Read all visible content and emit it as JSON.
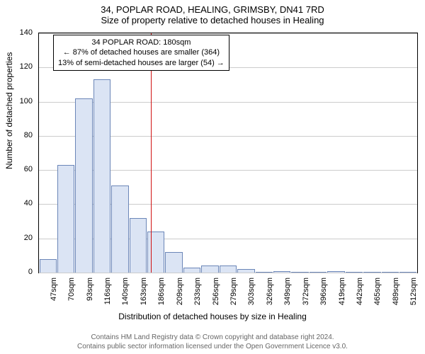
{
  "title": "34, POPLAR ROAD, HEALING, GRIMSBY, DN41 7RD",
  "subtitle": "Size of property relative to detached houses in Healing",
  "y_axis_label": "Number of detached properties",
  "x_axis_label": "Distribution of detached houses by size in Healing",
  "chart": {
    "type": "histogram",
    "ylim": [
      0,
      140
    ],
    "ytick_step": 20,
    "yticks": [
      0,
      20,
      40,
      60,
      80,
      100,
      120,
      140
    ],
    "bar_fill": "#dbe4f4",
    "bar_stroke": "#6b86b8",
    "background": "#ffffff",
    "grid_color": "#cccccc",
    "axis_color": "#000000",
    "ref_line_color": "#d11313",
    "x_labels": [
      "47sqm",
      "70sqm",
      "93sqm",
      "116sqm",
      "140sqm",
      "163sqm",
      "186sqm",
      "209sqm",
      "233sqm",
      "256sqm",
      "279sqm",
      "303sqm",
      "326sqm",
      "349sqm",
      "372sqm",
      "396sqm",
      "419sqm",
      "442sqm",
      "465sqm",
      "489sqm",
      "512sqm"
    ],
    "values": [
      8,
      63,
      102,
      113,
      51,
      32,
      24,
      12,
      3,
      4,
      4,
      2,
      0,
      1,
      0,
      0,
      1,
      0,
      0,
      0,
      0
    ],
    "ref_at_index": 5.7
  },
  "annotation": {
    "line1": "34 POPLAR ROAD: 180sqm",
    "line2": "← 87% of detached houses are smaller (364)",
    "line3": "13% of semi-detached houses are larger (54) →",
    "text_color": "#000000",
    "border_color": "#000000"
  },
  "copyright_line1": "Contains HM Land Registry data © Crown copyright and database right 2024.",
  "copyright_line2": "Contains public sector information licensed under the Open Government Licence v3.0.",
  "fonts": {
    "title_size": 13,
    "axis_label_size": 12,
    "tick_size": 11,
    "annot_size": 11,
    "copyright_size": 10
  }
}
